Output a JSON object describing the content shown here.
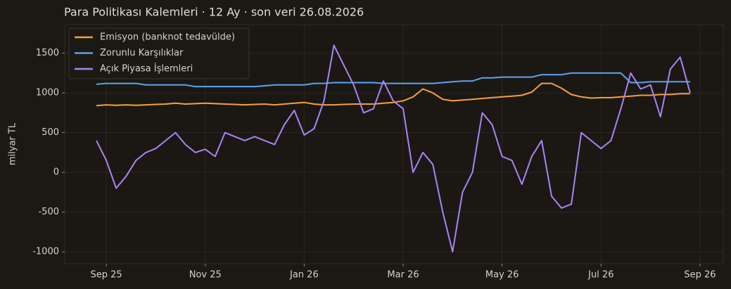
{
  "chart_data": {
    "type": "line",
    "title": "Para Politikası Kalemleri · 12 Ay · son veri 26.08.2026",
    "y_label": "milyar TL",
    "x": [
      -0.2,
      0,
      0.2,
      0.4,
      0.6,
      0.8,
      1,
      1.2,
      1.4,
      1.6,
      1.8,
      2,
      2.2,
      2.4,
      2.6,
      2.8,
      3,
      3.2,
      3.4,
      3.6,
      3.8,
      4,
      4.2,
      4.4,
      4.6,
      4.8,
      5,
      5.2,
      5.4,
      5.6,
      5.8,
      6,
      6.2,
      6.4,
      6.6,
      6.8,
      7,
      7.2,
      7.4,
      7.6,
      7.8,
      8,
      8.2,
      8.4,
      8.6,
      8.8,
      9,
      9.2,
      9.4,
      9.6,
      9.8,
      10,
      10.2,
      10.4,
      10.6,
      10.8,
      11,
      11.2,
      11.4,
      11.6,
      11.8
    ],
    "series": [
      {
        "name": "Emisyon (banknot tedavülde)",
        "color": "#f5a03c",
        "values": [
          840,
          850,
          845,
          850,
          845,
          850,
          855,
          860,
          870,
          860,
          865,
          870,
          865,
          860,
          855,
          850,
          855,
          860,
          850,
          860,
          870,
          880,
          860,
          850,
          850,
          855,
          860,
          860,
          860,
          870,
          880,
          900,
          950,
          1050,
          1000,
          920,
          900,
          910,
          920,
          930,
          940,
          950,
          960,
          970,
          1010,
          1120,
          1120,
          1060,
          980,
          950,
          935,
          940,
          940,
          950,
          960,
          970,
          970,
          980,
          980,
          990,
          990
        ]
      },
      {
        "name": "Zorunlu Karşılıklar",
        "color": "#5aa3f0",
        "values": [
          1110,
          1120,
          1120,
          1120,
          1120,
          1100,
          1100,
          1100,
          1100,
          1100,
          1080,
          1080,
          1080,
          1080,
          1080,
          1080,
          1080,
          1090,
          1100,
          1100,
          1100,
          1100,
          1120,
          1120,
          1130,
          1130,
          1130,
          1130,
          1130,
          1120,
          1120,
          1120,
          1120,
          1120,
          1120,
          1130,
          1140,
          1150,
          1150,
          1190,
          1190,
          1200,
          1200,
          1200,
          1200,
          1230,
          1230,
          1230,
          1250,
          1250,
          1250,
          1250,
          1250,
          1250,
          1130,
          1130,
          1140,
          1140,
          1140,
          1140,
          1140
        ]
      },
      {
        "name": "Açık Piyasa İşlemleri",
        "color": "#a884f5",
        "values": [
          400,
          150,
          -200,
          -50,
          150,
          250,
          300,
          400,
          500,
          350,
          250,
          290,
          200,
          500,
          450,
          400,
          450,
          400,
          350,
          600,
          780,
          470,
          550,
          900,
          1600,
          1350,
          1100,
          750,
          800,
          1150,
          900,
          800,
          0,
          250,
          100,
          -500,
          -1000,
          -250,
          0,
          750,
          600,
          200,
          150,
          -150,
          200,
          400,
          -300,
          -450,
          -400,
          500,
          400,
          300,
          400,
          800,
          1250,
          1050,
          1100,
          700,
          1300,
          1450,
          1000
        ]
      }
    ],
    "xlim": [
      -0.84,
      12.47
    ],
    "xticks": [
      {
        "value": 0,
        "label": "Sep 25"
      },
      {
        "value": 2,
        "label": "Nov 25"
      },
      {
        "value": 4,
        "label": "Jan 26"
      },
      {
        "value": 6,
        "label": "Mar 26"
      },
      {
        "value": 8,
        "label": "May 26"
      },
      {
        "value": 10,
        "label": "Jul 26"
      },
      {
        "value": 12,
        "label": "Sep 26"
      }
    ],
    "ylim": [
      -1150,
      1860
    ],
    "yticks": [
      -1000,
      -500,
      0,
      500,
      1000,
      1500
    ],
    "grid": true,
    "legend": "upper-left"
  }
}
